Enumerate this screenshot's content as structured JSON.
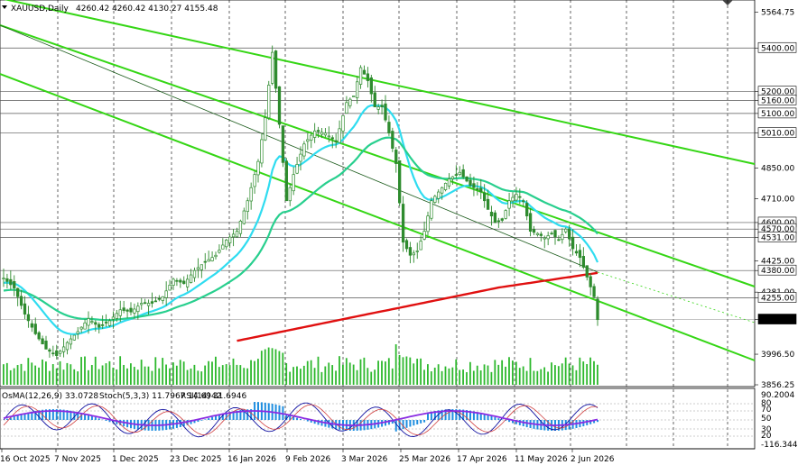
{
  "header": {
    "symbol": "XAUUSD,Daily",
    "ohlc": "4260.42 4260.42 4130.27 4155.48"
  },
  "indicator_header": {
    "osma": "OsMA(12,26,9) 33.0728",
    "stoch": "Stoch(5,3,3) 11.7967 14.6942",
    "rsi": "RSI(14) 31.6946"
  },
  "colors": {
    "background": "#ffffff",
    "candles": "#2e8b2e",
    "volume": "#2db82d",
    "channel": "#35d615",
    "ema_fast": "#2fdcf0",
    "ema_mid": "#28cf8e",
    "ema_slow": "#e01010",
    "grid": "#000000",
    "osma_hist": "#1f8ee0",
    "stoch_main": "#1010a0",
    "stoch_signal": "#d04040",
    "rsi": "#8a2be2"
  },
  "chart_data": {
    "type": "candlestick",
    "price_axis_ticks": [
      "5564.75",
      "5400.00",
      "5200.00",
      "5160.00",
      "5100.00",
      "5010.00",
      "4850.00",
      "4710.00",
      "4600.00",
      "4570.00",
      "4531.00",
      "4425.00",
      "4380.00",
      "4281.00",
      "4255.00",
      "4155.48",
      "3996.50",
      "3856.25"
    ],
    "levels": [
      "5400.00",
      "5200.00",
      "5160.00",
      "5100.00",
      "5010.00",
      "4600.00",
      "4570.00",
      "4531.00",
      "4380.00",
      "4255.00"
    ],
    "current_price": "4155.48",
    "ylim": [
      3856.25,
      5620
    ],
    "x_labels": [
      "16 Oct 2025",
      "7 Nov 2025",
      "1 Dec 2025",
      "23 Dec 2025",
      "16 Jan 2026",
      "9 Feb 2026",
      "3 Mar 2026",
      "25 Mar 2026",
      "17 Apr 2026",
      "11 May 2026",
      "2 Jun 2026"
    ],
    "close_path": [
      [
        0,
        4345
      ],
      [
        3,
        4300
      ],
      [
        6,
        4180
      ],
      [
        9,
        4090
      ],
      [
        12,
        4020
      ],
      [
        15,
        3990
      ],
      [
        18,
        4050
      ],
      [
        21,
        4100
      ],
      [
        24,
        4160
      ],
      [
        27,
        4120
      ],
      [
        30,
        4150
      ],
      [
        33,
        4200
      ],
      [
        36,
        4190
      ],
      [
        39,
        4230
      ],
      [
        42,
        4230
      ],
      [
        45,
        4260
      ],
      [
        48,
        4340
      ],
      [
        51,
        4320
      ],
      [
        54,
        4380
      ],
      [
        57,
        4420
      ],
      [
        60,
        4450
      ],
      [
        63,
        4520
      ],
      [
        66,
        4560
      ],
      [
        69,
        4700
      ],
      [
        72,
        4880
      ],
      [
        74,
        5080
      ],
      [
        76,
        5380
      ],
      [
        78,
        5050
      ],
      [
        80,
        4700
      ],
      [
        82,
        4820
      ],
      [
        85,
        4960
      ],
      [
        88,
        5020
      ],
      [
        91,
        5010
      ],
      [
        94,
        4970
      ],
      [
        97,
        5150
      ],
      [
        99,
        5180
      ],
      [
        101,
        5310
      ],
      [
        103,
        5250
      ],
      [
        105,
        5130
      ],
      [
        107,
        5130
      ],
      [
        109,
        5010
      ],
      [
        111,
        4870
      ],
      [
        113,
        4510
      ],
      [
        115,
        4450
      ],
      [
        117,
        4470
      ],
      [
        119,
        4560
      ],
      [
        121,
        4700
      ],
      [
        123,
        4740
      ],
      [
        126,
        4800
      ],
      [
        129,
        4830
      ],
      [
        132,
        4770
      ],
      [
        135,
        4740
      ],
      [
        137,
        4660
      ],
      [
        139,
        4600
      ],
      [
        141,
        4610
      ],
      [
        143,
        4700
      ],
      [
        145,
        4730
      ],
      [
        147,
        4700
      ],
      [
        149,
        4560
      ],
      [
        151,
        4550
      ],
      [
        153,
        4530
      ],
      [
        155,
        4550
      ],
      [
        157,
        4520
      ],
      [
        159,
        4570
      ],
      [
        161,
        4480
      ],
      [
        163,
        4440
      ],
      [
        165,
        4350
      ],
      [
        167,
        4260
      ],
      [
        168,
        4155
      ]
    ],
    "volume_ticks": 168,
    "channel": "descending",
    "osma_range": [
      "90.2004",
      "-116.3446"
    ],
    "oscillator_levels": [
      "80",
      "70",
      "50",
      "30",
      "20"
    ]
  }
}
